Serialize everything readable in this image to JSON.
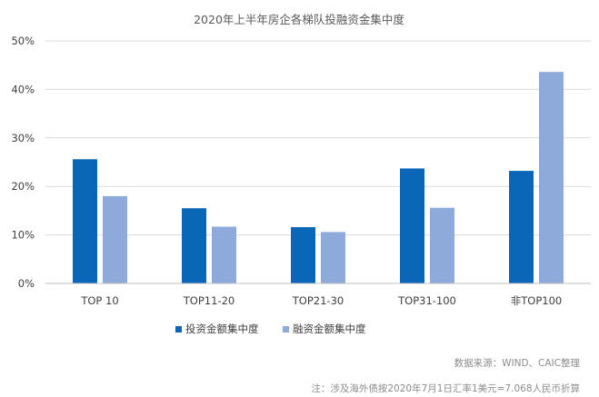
{
  "chart_data": {
    "type": "bar",
    "title": "2020年上半年房企各梯队投融资金集中度",
    "categories": [
      "TOP 10",
      "TOP11-20",
      "TOP21-30",
      "TOP31-100",
      "非TOP100"
    ],
    "series": [
      {
        "name": "投资金额集中度",
        "values": [
          25.6,
          15.5,
          11.6,
          23.7,
          23.2
        ],
        "color": "#0a66b7"
      },
      {
        "name": "融资金额集中度",
        "values": [
          18.0,
          11.7,
          10.6,
          15.6,
          43.6
        ],
        "color": "#8eaadb"
      }
    ],
    "ylim": [
      0,
      50
    ],
    "yticks": [
      "0%",
      "10%",
      "20%",
      "30%",
      "40%",
      "50%"
    ],
    "ytick_values": [
      0,
      10,
      20,
      30,
      40,
      50
    ],
    "grid": true,
    "legend_position": "bottom"
  },
  "notes": {
    "source": "数据来源：WIND、CAIC整理",
    "footnote": "注：涉及海外债按2020年7月1日汇率1美元=7.068人民币折算"
  }
}
